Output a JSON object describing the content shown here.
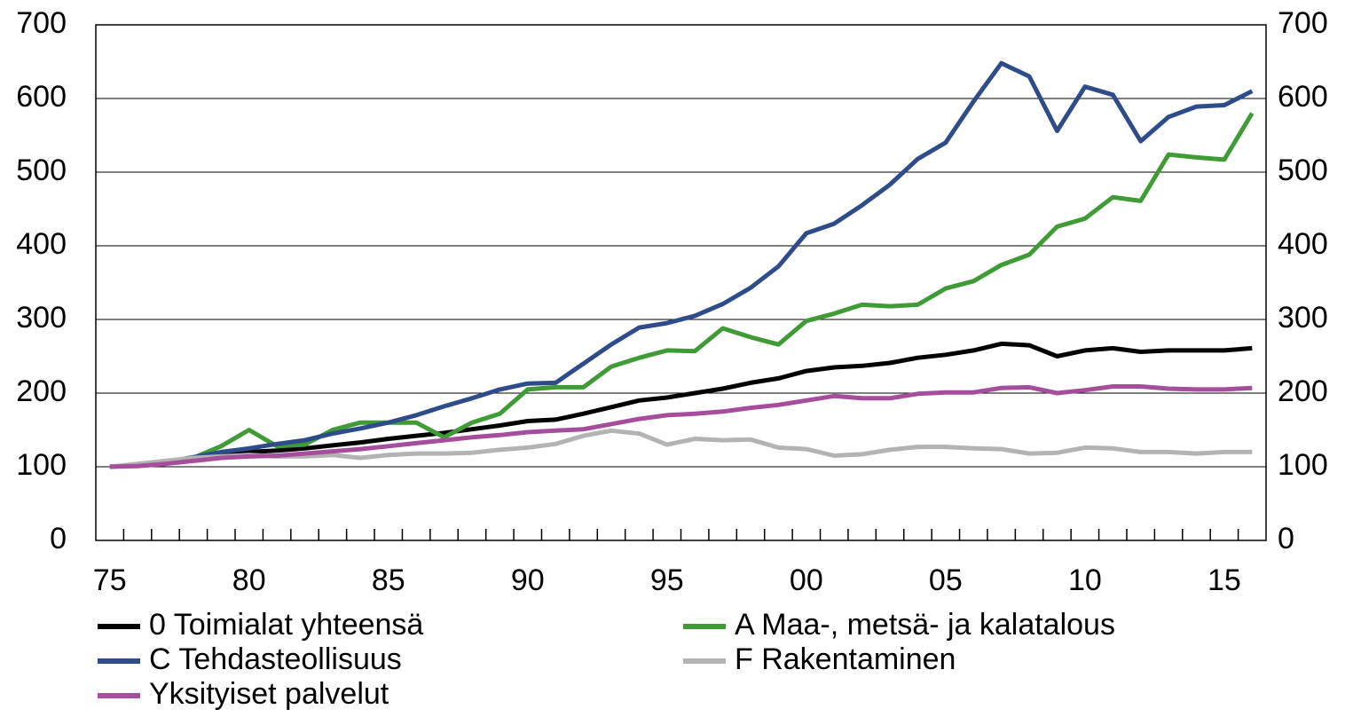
{
  "chart_data": {
    "type": "line",
    "categories": [
      "75",
      null,
      null,
      null,
      null,
      "80",
      null,
      null,
      null,
      null,
      "85",
      null,
      null,
      null,
      null,
      "90",
      null,
      null,
      null,
      null,
      "95",
      null,
      null,
      null,
      null,
      "00",
      null,
      null,
      null,
      null,
      "05",
      null,
      null,
      null,
      null,
      "10",
      null,
      null,
      null,
      null,
      "15",
      null
    ],
    "series": [
      {
        "name": "0 Toimialat yhteensä",
        "color": "#000000",
        "values": [
          100,
          103,
          106,
          110,
          116,
          120,
          122,
          125,
          129,
          133,
          138,
          142,
          146,
          151,
          156,
          162,
          164,
          172,
          181,
          190,
          194,
          200,
          206,
          214,
          220,
          230,
          235,
          237,
          241,
          248,
          252,
          258,
          267,
          265,
          250,
          258,
          261,
          256,
          258,
          258,
          258,
          261
        ]
      },
      {
        "name": "A Maa-, metsä- ja kalatalous",
        "color": "#3f9b35",
        "values": [
          100,
          103,
          106,
          112,
          128,
          150,
          128,
          130,
          150,
          160,
          160,
          160,
          140,
          160,
          172,
          205,
          208,
          208,
          236,
          248,
          258,
          257,
          288,
          276,
          266,
          298,
          308,
          320,
          318,
          320,
          342,
          352,
          374,
          388,
          426,
          437,
          466,
          461,
          524,
          520,
          517,
          580
        ]
      },
      {
        "name": "C Tehdasteollisuus",
        "color": "#2f4c8a",
        "values": [
          100,
          103,
          106,
          113,
          120,
          125,
          131,
          136,
          145,
          152,
          160,
          170,
          182,
          193,
          205,
          213,
          214,
          240,
          266,
          289,
          295,
          305,
          321,
          343,
          372,
          417,
          430,
          455,
          483,
          518,
          540,
          596,
          648,
          630,
          556,
          616,
          605,
          542,
          575,
          589,
          591,
          610
        ]
      },
      {
        "name": "F Rakentaminen",
        "color": "#b3b3b3",
        "values": [
          100,
          104,
          108,
          112,
          114,
          116,
          114,
          114,
          116,
          112,
          116,
          118,
          118,
          119,
          123,
          126,
          131,
          142,
          149,
          145,
          130,
          138,
          136,
          137,
          126,
          124,
          115,
          117,
          123,
          127,
          127,
          125,
          124,
          118,
          119,
          126,
          125,
          120,
          120,
          118,
          120,
          120
        ]
      },
      {
        "name": "Yksityiset palvelut",
        "color": "#a64d9c",
        "values": [
          100,
          101,
          104,
          108,
          112,
          114,
          115,
          118,
          121,
          124,
          128,
          132,
          136,
          140,
          143,
          147,
          149,
          151,
          158,
          165,
          170,
          172,
          175,
          180,
          184,
          190,
          196,
          193,
          193,
          199,
          201,
          201,
          207,
          208,
          200,
          204,
          209,
          209,
          206,
          205,
          205,
          207
        ]
      }
    ],
    "ylim": [
      0,
      700
    ],
    "yticks": [
      0,
      100,
      200,
      300,
      400,
      500,
      600,
      700
    ],
    "grid": true
  }
}
